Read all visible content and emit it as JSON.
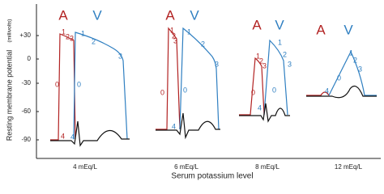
{
  "y_axis": {
    "title": "Resting membrane potential",
    "unit": "(millivolts)",
    "ticks": [
      "+30",
      "0",
      "-30",
      "-60",
      "-90"
    ]
  },
  "x_axis": {
    "title": "Serum potassium level"
  },
  "panels": [
    {
      "label": "4 mEq/L",
      "atrial": "A",
      "ventricular": "V",
      "atrial_phases": [
        "0",
        "1",
        "2",
        "3",
        "4"
      ],
      "ventricular_phases": [
        "0",
        "1",
        "2",
        "3",
        "4"
      ]
    },
    {
      "label": "6 mEq/L",
      "atrial": "A",
      "ventricular": "V",
      "atrial_phases": [
        "0",
        "1",
        "2",
        "3"
      ],
      "ventricular_phases": [
        "0",
        "1",
        "2",
        "3",
        "4"
      ]
    },
    {
      "label": "8 mEq/L",
      "atrial": "A",
      "ventricular": "V",
      "atrial_phases": [
        "0",
        "1",
        "2",
        "3"
      ],
      "ventricular_phases": [
        "0",
        "1",
        "2",
        "3",
        "4"
      ]
    },
    {
      "label": "12 mEq/L",
      "atrial": "A",
      "ventricular": "V",
      "atrial_phases": [],
      "ventricular_phases": [
        "0",
        "1",
        "2",
        "3",
        "4"
      ]
    }
  ]
}
